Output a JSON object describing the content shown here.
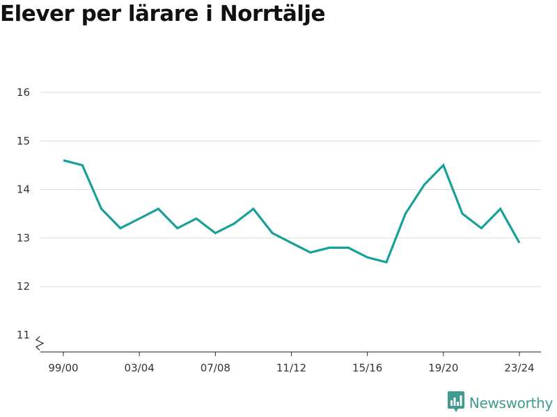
{
  "page": {
    "title": "Elever per lärare i Norrtälje"
  },
  "brand": {
    "name": "Newsworthy",
    "color": "#3f9a8f",
    "icon": "newsworthy-logo-icon"
  },
  "colors": {
    "line": "#16a098",
    "grid": "#d9d9d9",
    "axis": "#222222"
  },
  "chart_data": {
    "type": "line",
    "title": "Elever per lärare i Norrtälje",
    "xlabel": "",
    "ylabel": "",
    "ylim": [
      10.65,
      16.2
    ],
    "y_ticks": [
      11,
      12,
      13,
      14,
      15,
      16
    ],
    "y_axis_break": true,
    "grid": true,
    "legend": "none",
    "x": [
      "99/00",
      "00/01",
      "01/02",
      "02/03",
      "03/04",
      "04/05",
      "05/06",
      "06/07",
      "07/08",
      "08/09",
      "09/10",
      "10/11",
      "11/12",
      "12/13",
      "13/14",
      "14/15",
      "15/16",
      "16/17",
      "17/18",
      "18/19",
      "19/20",
      "20/21",
      "21/22",
      "22/23",
      "23/24"
    ],
    "x_tick_labels": [
      "99/00",
      "03/04",
      "07/08",
      "11/12",
      "15/16",
      "19/20",
      "23/24"
    ],
    "series": [
      {
        "values": [
          14.6,
          14.5,
          13.6,
          13.2,
          13.4,
          13.6,
          13.2,
          13.4,
          13.1,
          13.3,
          13.6,
          13.1,
          12.9,
          12.7,
          12.8,
          12.8,
          12.6,
          12.5,
          13.5,
          14.1,
          14.5,
          13.5,
          13.2,
          13.6,
          12.9
        ]
      }
    ]
  }
}
